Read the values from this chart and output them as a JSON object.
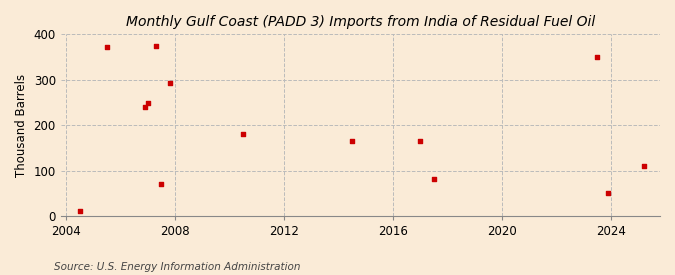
{
  "title": "Monthly Gulf Coast (PADD 3) Imports from India of Residual Fuel Oil",
  "ylabel": "Thousand Barrels",
  "source": "Source: U.S. Energy Information Administration",
  "background_color": "#faebd7",
  "scatter_color": "#cc0000",
  "points": [
    [
      2004.5,
      10
    ],
    [
      2005.5,
      373
    ],
    [
      2006.9,
      240
    ],
    [
      2007.0,
      248
    ],
    [
      2007.3,
      375
    ],
    [
      2007.5,
      70
    ],
    [
      2007.8,
      293
    ],
    [
      2010.5,
      180
    ],
    [
      2014.5,
      165
    ],
    [
      2017.0,
      165
    ],
    [
      2017.5,
      82
    ],
    [
      2023.5,
      350
    ],
    [
      2023.9,
      50
    ],
    [
      2025.2,
      110
    ]
  ],
  "xlim": [
    2003.8,
    2025.8
  ],
  "ylim": [
    0,
    400
  ],
  "xticks": [
    2004,
    2008,
    2012,
    2016,
    2020,
    2024
  ],
  "yticks": [
    0,
    100,
    200,
    300,
    400
  ],
  "grid_color": "#bbbbbb",
  "vline_years": [
    2004,
    2008,
    2012,
    2016,
    2020,
    2024
  ],
  "title_fontsize": 10,
  "label_fontsize": 8.5,
  "source_fontsize": 7.5
}
